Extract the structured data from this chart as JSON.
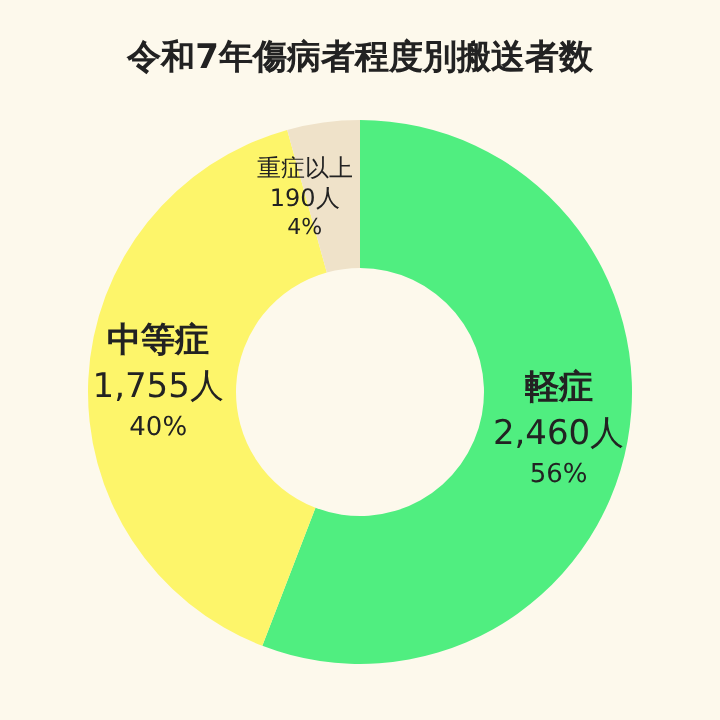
{
  "chart_data": {
    "type": "donut",
    "title": "令和7年傷病者程度別搬送者数",
    "categories": [
      "軽症",
      "中等症",
      "重症以上"
    ],
    "values": [
      2460,
      1755,
      190
    ],
    "value_labels": [
      "2,460人\n56%",
      "1,755人\n40%",
      "190人\n4%"
    ],
    "colors": [
      "#50ee80",
      "#fdf56a",
      "#efe2c9"
    ]
  }
}
